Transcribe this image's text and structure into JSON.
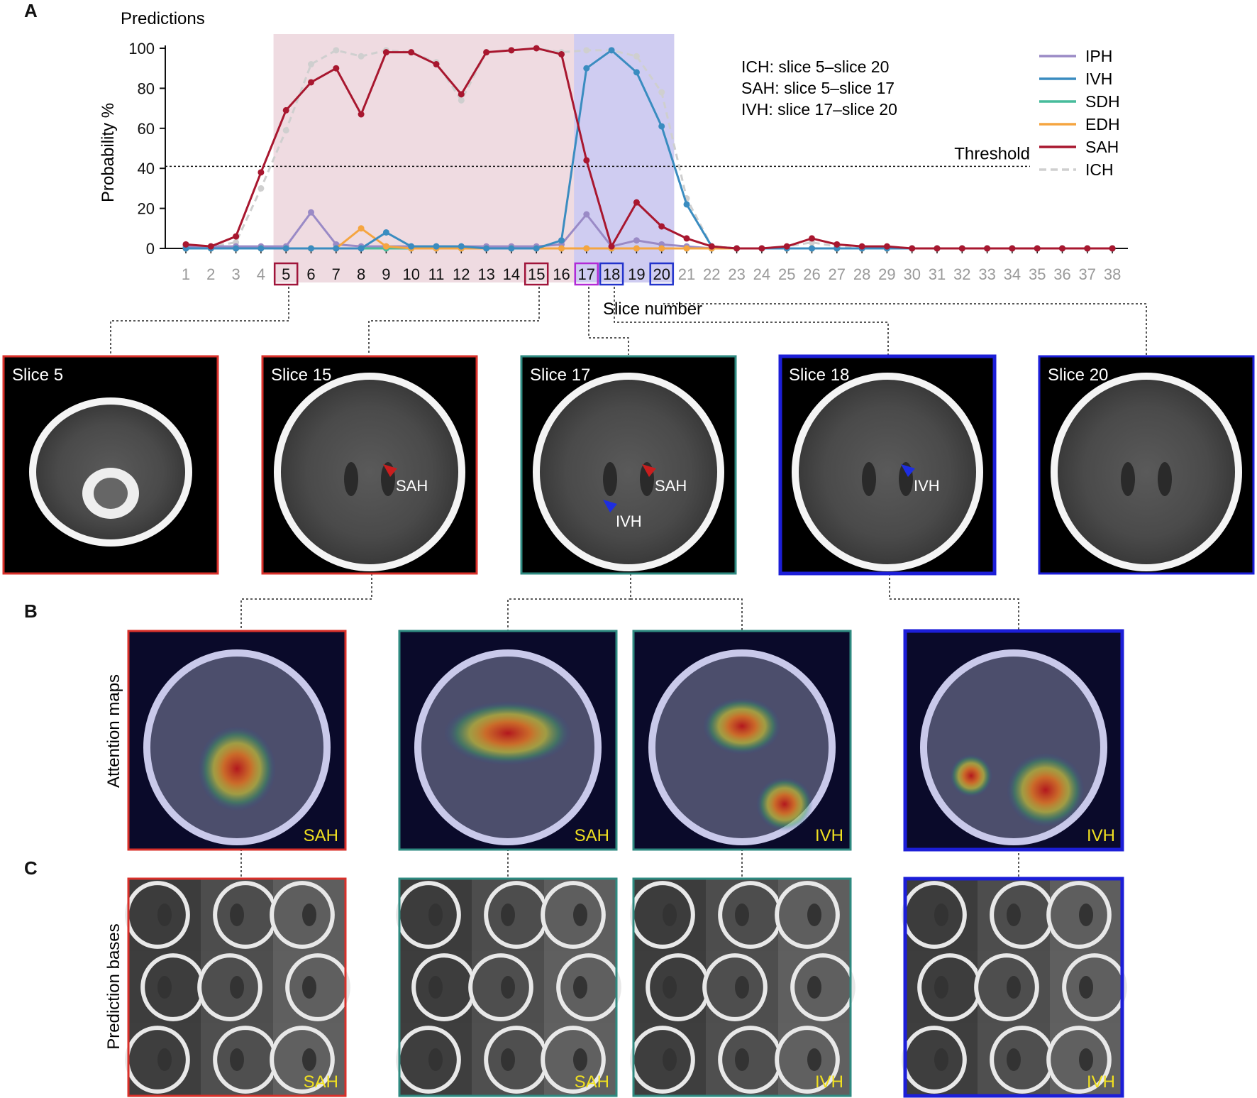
{
  "panels": {
    "a": "A",
    "b": "B",
    "c": "C"
  },
  "chart_data": {
    "type": "line",
    "title": "Predictions",
    "xlabel": "Slice number",
    "ylabel": "Probability %",
    "x": [
      1,
      2,
      3,
      4,
      5,
      6,
      7,
      8,
      9,
      10,
      11,
      12,
      13,
      14,
      15,
      16,
      17,
      18,
      19,
      20,
      21,
      22,
      23,
      24,
      25,
      26,
      27,
      28,
      29,
      30,
      31,
      32,
      33,
      34,
      35,
      36,
      37,
      38
    ],
    "ylim": [
      0,
      100
    ],
    "yticks": [
      0,
      20,
      40,
      60,
      80,
      100
    ],
    "threshold": {
      "value": 41,
      "label": "Threshold"
    },
    "highlight_ranges": [
      {
        "from": 5,
        "to": 20,
        "color": "#ecd5dc"
      },
      {
        "from": 17,
        "to": 20,
        "color": "#c9c9f3"
      }
    ],
    "boxed_slices": [
      {
        "slice": 5,
        "color": "#a0143a"
      },
      {
        "slice": 15,
        "color": "#a0143a"
      },
      {
        "slice": 17,
        "color": "#b22ad6"
      },
      {
        "slice": 18,
        "color": "#2233cc"
      },
      {
        "slice": 20,
        "color": "#2233cc"
      }
    ],
    "annotations": [
      "ICH: slice 5–slice 20",
      "SAH: slice 5–slice 17",
      "IVH: slice 17–slice 20"
    ],
    "legend_position": "top-right",
    "series": [
      {
        "name": "IPH",
        "color": "#9a8ac6",
        "dashed": false,
        "values": [
          1,
          1,
          1,
          1,
          1,
          18,
          2,
          1,
          1,
          1,
          1,
          1,
          1,
          1,
          1,
          2,
          17,
          1,
          4,
          2,
          1,
          0,
          0,
          0,
          0,
          0,
          0,
          0,
          0,
          0,
          0,
          0,
          0,
          0,
          0,
          0,
          0,
          0
        ]
      },
      {
        "name": "IVH",
        "color": "#3a8cc0",
        "dashed": false,
        "values": [
          0,
          0,
          0,
          0,
          0,
          0,
          0,
          0,
          8,
          1,
          1,
          1,
          0,
          0,
          0,
          4,
          90,
          99,
          88,
          61,
          22,
          1,
          0,
          0,
          0,
          0,
          0,
          0,
          0,
          0,
          0,
          0,
          0,
          0,
          0,
          0,
          0,
          0
        ]
      },
      {
        "name": "SDH",
        "color": "#47bc9b",
        "dashed": false,
        "values": [
          0,
          0,
          0,
          0,
          0,
          0,
          0,
          0,
          0,
          0,
          0,
          0,
          0,
          0,
          0,
          0,
          0,
          0,
          0,
          0,
          0,
          0,
          0,
          0,
          0,
          0,
          0,
          0,
          0,
          0,
          0,
          0,
          0,
          0,
          0,
          0,
          0,
          0
        ]
      },
      {
        "name": "EDH",
        "color": "#f5a540",
        "dashed": false,
        "values": [
          0,
          0,
          0,
          0,
          0,
          0,
          0,
          10,
          1,
          0,
          0,
          0,
          0,
          0,
          0,
          0,
          0,
          0,
          0,
          0,
          0,
          0,
          0,
          0,
          0,
          0,
          0,
          0,
          0,
          0,
          0,
          0,
          0,
          0,
          0,
          0,
          0,
          0
        ]
      },
      {
        "name": "SAH",
        "color": "#a8172f",
        "dashed": false,
        "values": [
          2,
          1,
          6,
          38,
          69,
          83,
          90,
          67,
          98,
          98,
          92,
          77,
          98,
          99,
          100,
          97,
          44,
          1,
          23,
          11,
          5,
          1,
          0,
          0,
          1,
          5,
          2,
          1,
          1,
          0,
          0,
          0,
          0,
          0,
          0,
          0,
          0,
          0
        ]
      },
      {
        "name": "ICH",
        "color": "#cfcfcf",
        "dashed": true,
        "values": [
          1,
          1,
          3,
          30,
          59,
          92,
          99,
          96,
          99,
          98,
          93,
          74,
          98,
          99,
          100,
          98,
          99,
          99,
          96,
          78,
          25,
          1,
          0,
          0,
          1,
          3,
          1,
          0,
          0,
          0,
          0,
          0,
          0,
          0,
          0,
          0,
          0,
          0
        ]
      }
    ]
  },
  "ct_row": [
    {
      "label": "Slice 5",
      "color": "#d9302a",
      "annots": []
    },
    {
      "label": "Slice 15",
      "color": "#d9302a",
      "annots": [
        {
          "text": "SAH",
          "arrow": "red"
        }
      ]
    },
    {
      "label": "Slice 17",
      "color": "#2e8a80",
      "annots": [
        {
          "text": "SAH",
          "arrow": "red"
        },
        {
          "text": "IVH",
          "arrow": "blue"
        }
      ]
    },
    {
      "label": "Slice 18",
      "color": "#1c1ed8",
      "annots": [
        {
          "text": "IVH",
          "arrow": "blue"
        }
      ]
    },
    {
      "label": "Slice 20",
      "color": "#1c1ed8",
      "annots": []
    }
  ],
  "attention": {
    "row_label": "Attention maps",
    "items": [
      {
        "tag": "SAH",
        "color": "#d9302a"
      },
      {
        "tag": "SAH",
        "color": "#2e8a80"
      },
      {
        "tag": "IVH",
        "color": "#2e8a80"
      },
      {
        "tag": "IVH",
        "color": "#1c1ed8"
      }
    ]
  },
  "bases": {
    "row_label": "Prediction bases",
    "items": [
      {
        "tag": "SAH",
        "color": "#d9302a"
      },
      {
        "tag": "SAH",
        "color": "#2e8a80"
      },
      {
        "tag": "IVH",
        "color": "#2e8a80"
      },
      {
        "tag": "IVH",
        "color": "#1c1ed8"
      }
    ]
  }
}
